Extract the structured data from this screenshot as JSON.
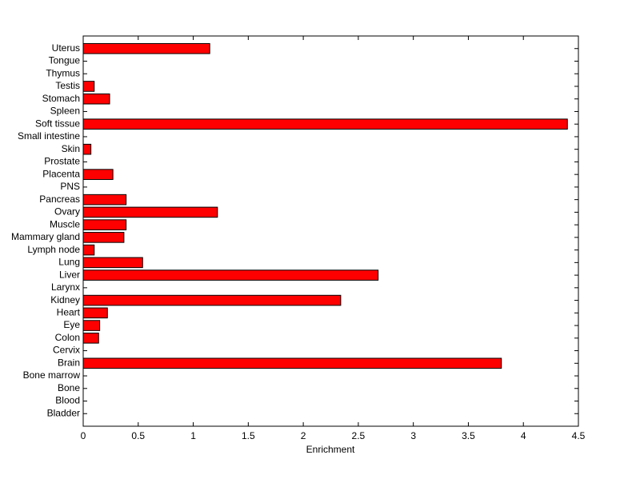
{
  "chart_data": {
    "type": "barh",
    "xlabel": "Enrichment",
    "categories": [
      "Bladder",
      "Blood",
      "Bone",
      "Bone marrow",
      "Brain",
      "Cervix",
      "Colon",
      "Eye",
      "Heart",
      "Kidney",
      "Larynx",
      "Liver",
      "Lung",
      "Lymph node",
      "Mammary gland",
      "Muscle",
      "Ovary",
      "Pancreas",
      "PNS",
      "Placenta",
      "Prostate",
      "Skin",
      "Small intestine",
      "Soft tissue",
      "Spleen",
      "Stomach",
      "Testis",
      "Thymus",
      "Tongue",
      "Uterus"
    ],
    "values": [
      0,
      0,
      0,
      0,
      3.8,
      0,
      0.14,
      0.15,
      0.22,
      2.34,
      0,
      2.68,
      0.54,
      0.1,
      0.37,
      0.39,
      1.22,
      0.39,
      0,
      0.27,
      0,
      0.07,
      0,
      4.4,
      0,
      0.24,
      0.1,
      0,
      0,
      1.15
    ],
    "color": "#ff0000",
    "xlim": [
      0,
      4.5
    ],
    "xticks": [
      0,
      0.5,
      1,
      1.5,
      2,
      2.5,
      3,
      3.5,
      4,
      4.5
    ]
  }
}
